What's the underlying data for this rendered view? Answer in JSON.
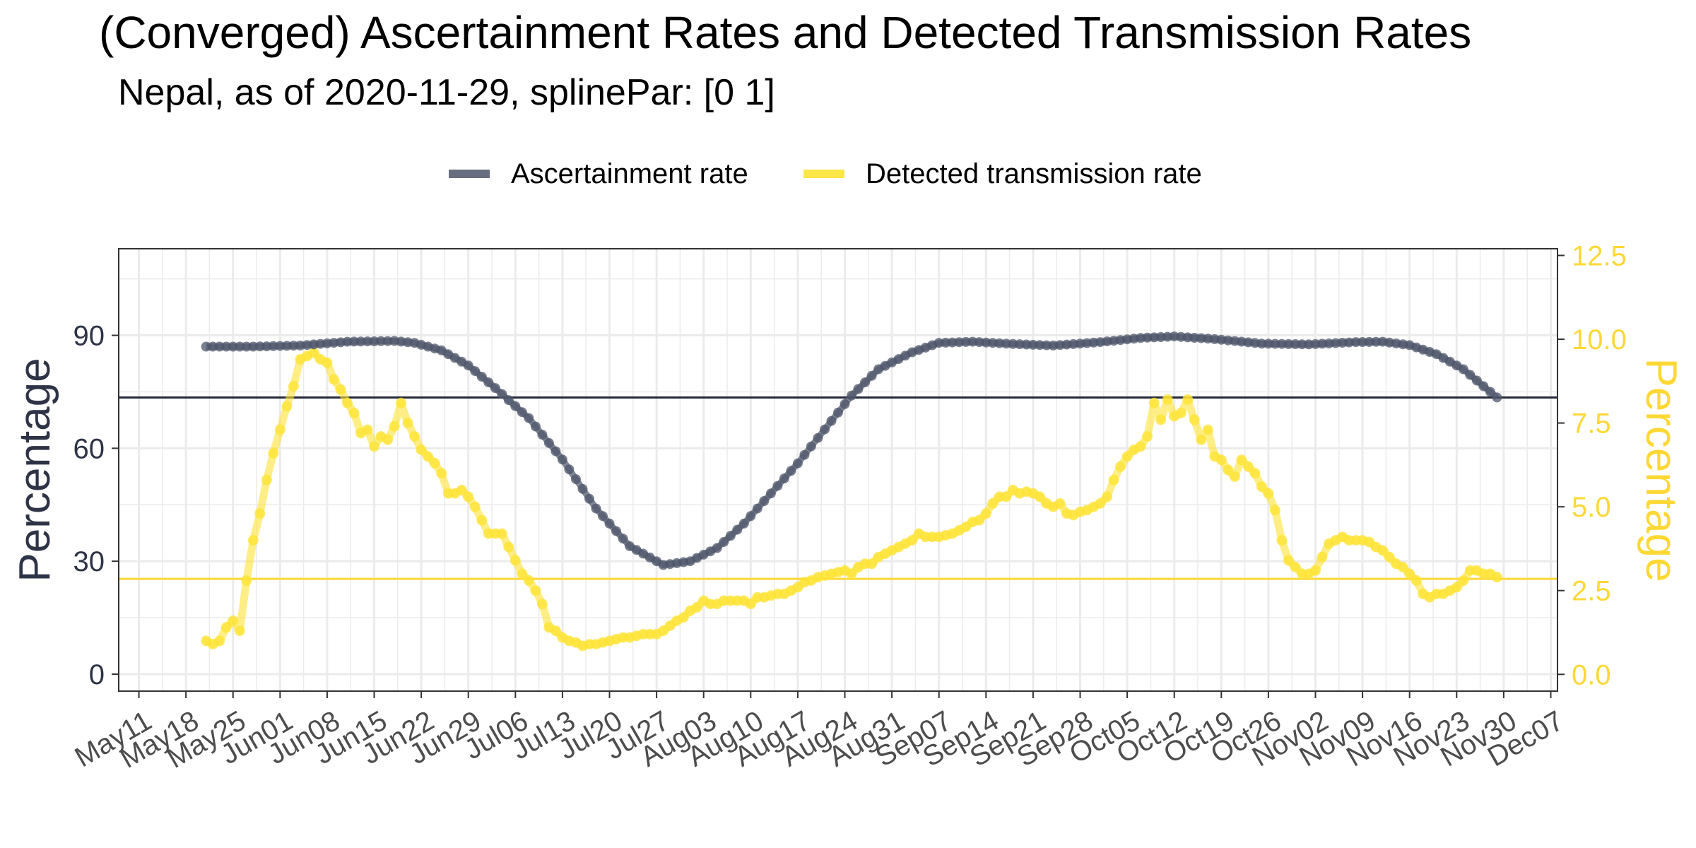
{
  "chart_data": {
    "type": "line",
    "title": "(Converged) Ascertainment Rates and Detected Transmission Rates",
    "subtitle": "Nepal, as of 2020-11-29, splinePar: [0 1]",
    "ylabel_left": "Percentage",
    "ylabel_right": "Percentage",
    "ylim_left": [
      -4.5,
      113
    ],
    "yticks_left": [
      "0",
      "30",
      "60",
      "90"
    ],
    "ylim_right": [
      -0.5,
      12.7
    ],
    "yticks_right": [
      "0.0",
      "2.5",
      "5.0",
      "7.5",
      "10.0",
      "12.5"
    ],
    "xlim": [
      "2020-05-08",
      "2020-12-08"
    ],
    "x_ticks": [
      {
        "date": "2020-05-11",
        "label": "May11"
      },
      {
        "date": "2020-05-18",
        "label": "May18"
      },
      {
        "date": "2020-05-25",
        "label": "May25"
      },
      {
        "date": "2020-06-01",
        "label": "Jun01"
      },
      {
        "date": "2020-06-08",
        "label": "Jun08"
      },
      {
        "date": "2020-06-15",
        "label": "Jun15"
      },
      {
        "date": "2020-06-22",
        "label": "Jun22"
      },
      {
        "date": "2020-06-29",
        "label": "Jun29"
      },
      {
        "date": "2020-07-06",
        "label": "Jul06"
      },
      {
        "date": "2020-07-13",
        "label": "Jul13"
      },
      {
        "date": "2020-07-20",
        "label": "Jul20"
      },
      {
        "date": "2020-07-27",
        "label": "Jul27"
      },
      {
        "date": "2020-08-03",
        "label": "Aug03"
      },
      {
        "date": "2020-08-10",
        "label": "Aug10"
      },
      {
        "date": "2020-08-17",
        "label": "Aug17"
      },
      {
        "date": "2020-08-24",
        "label": "Aug24"
      },
      {
        "date": "2020-08-31",
        "label": "Aug31"
      },
      {
        "date": "2020-09-07",
        "label": "Sep07"
      },
      {
        "date": "2020-09-14",
        "label": "Sep14"
      },
      {
        "date": "2020-09-21",
        "label": "Sep21"
      },
      {
        "date": "2020-09-28",
        "label": "Sep28"
      },
      {
        "date": "2020-10-05",
        "label": "Oct05"
      },
      {
        "date": "2020-10-12",
        "label": "Oct12"
      },
      {
        "date": "2020-10-19",
        "label": "Oct19"
      },
      {
        "date": "2020-10-26",
        "label": "Oct26"
      },
      {
        "date": "2020-11-02",
        "label": "Nov02"
      },
      {
        "date": "2020-11-09",
        "label": "Nov09"
      },
      {
        "date": "2020-11-16",
        "label": "Nov16"
      },
      {
        "date": "2020-11-23",
        "label": "Nov23"
      },
      {
        "date": "2020-11-30",
        "label": "Nov30"
      },
      {
        "date": "2020-12-07",
        "label": "Dec07"
      }
    ],
    "grid": true,
    "legend_position": "top",
    "colors": {
      "ascertainment": "#4d5569",
      "transmission": "#fde333",
      "ref_dark": "#252a3b",
      "ref_yellow": "#fdd835",
      "left_axis_text": "#2e3446",
      "right_axis_text": "#fdd835"
    },
    "series": [
      {
        "name": "Ascertainment rate",
        "axis": "left",
        "points": [
          [
            "2020-05-21",
            87
          ],
          [
            "2020-05-28",
            87
          ],
          [
            "2020-06-04",
            87.3
          ],
          [
            "2020-06-11",
            88.3
          ],
          [
            "2020-06-18",
            88.5
          ],
          [
            "2020-06-21",
            88
          ],
          [
            "2020-06-25",
            86
          ],
          [
            "2020-06-29",
            82
          ],
          [
            "2020-07-03",
            76
          ],
          [
            "2020-07-08",
            68
          ],
          [
            "2020-07-13",
            57
          ],
          [
            "2020-07-18",
            44
          ],
          [
            "2020-07-23",
            34
          ],
          [
            "2020-07-28",
            29
          ],
          [
            "2020-08-01",
            30
          ],
          [
            "2020-08-05",
            33.5
          ],
          [
            "2020-08-09",
            40
          ],
          [
            "2020-08-13",
            48
          ],
          [
            "2020-08-17",
            56
          ],
          [
            "2020-08-21",
            65
          ],
          [
            "2020-08-25",
            74
          ],
          [
            "2020-08-29",
            81
          ],
          [
            "2020-09-03",
            85.5
          ],
          [
            "2020-09-07",
            88
          ],
          [
            "2020-09-12",
            88.3
          ],
          [
            "2020-09-18",
            87.7
          ],
          [
            "2020-09-24",
            87.3
          ],
          [
            "2020-10-01",
            88.2
          ],
          [
            "2020-10-07",
            89.3
          ],
          [
            "2020-10-12",
            89.7
          ],
          [
            "2020-10-18",
            89
          ],
          [
            "2020-10-25",
            87.8
          ],
          [
            "2020-11-01",
            87.6
          ],
          [
            "2020-11-08",
            88.2
          ],
          [
            "2020-11-12",
            88.3
          ],
          [
            "2020-11-16",
            87.4
          ],
          [
            "2020-11-20",
            85
          ],
          [
            "2020-11-24",
            81
          ],
          [
            "2020-11-29",
            73.5
          ]
        ]
      },
      {
        "name": "Detected transmission rate",
        "axis": "right",
        "points": [
          [
            "2020-05-21",
            1
          ],
          [
            "2020-05-22",
            0.9
          ],
          [
            "2020-05-23",
            1
          ],
          [
            "2020-05-24",
            1.4
          ],
          [
            "2020-05-25",
            1.6
          ],
          [
            "2020-05-26",
            1.3
          ],
          [
            "2020-05-27",
            2.8
          ],
          [
            "2020-05-28",
            4
          ],
          [
            "2020-05-29",
            4.8
          ],
          [
            "2020-05-30",
            5.8
          ],
          [
            "2020-05-31",
            6.6
          ],
          [
            "2020-06-01",
            7.3
          ],
          [
            "2020-06-02",
            8
          ],
          [
            "2020-06-03",
            8.6
          ],
          [
            "2020-06-04",
            9.4
          ],
          [
            "2020-06-05",
            9.5
          ],
          [
            "2020-06-06",
            9.6
          ],
          [
            "2020-06-07",
            9.4
          ],
          [
            "2020-06-08",
            9.3
          ],
          [
            "2020-06-09",
            8.8
          ],
          [
            "2020-06-10",
            8.5
          ],
          [
            "2020-06-11",
            8.1
          ],
          [
            "2020-06-12",
            7.8
          ],
          [
            "2020-06-13",
            7.2
          ],
          [
            "2020-06-14",
            7.3
          ],
          [
            "2020-06-15",
            6.8
          ],
          [
            "2020-06-16",
            7.1
          ],
          [
            "2020-06-17",
            7
          ],
          [
            "2020-06-18",
            7.4
          ],
          [
            "2020-06-19",
            8.1
          ],
          [
            "2020-06-20",
            7.5
          ],
          [
            "2020-06-21",
            7.1
          ],
          [
            "2020-06-22",
            6.7
          ],
          [
            "2020-06-23",
            6.5
          ],
          [
            "2020-06-24",
            6.3
          ],
          [
            "2020-06-25",
            6
          ],
          [
            "2020-06-26",
            5.4
          ],
          [
            "2020-06-27",
            5.4
          ],
          [
            "2020-06-28",
            5.5
          ],
          [
            "2020-06-29",
            5.3
          ],
          [
            "2020-06-30",
            5
          ],
          [
            "2020-07-01",
            4.6
          ],
          [
            "2020-07-02",
            4.2
          ],
          [
            "2020-07-03",
            4.2
          ],
          [
            "2020-07-04",
            4.2
          ],
          [
            "2020-07-05",
            3.8
          ],
          [
            "2020-07-06",
            3.4
          ],
          [
            "2020-07-07",
            3
          ],
          [
            "2020-07-08",
            2.8
          ],
          [
            "2020-07-09",
            2.5
          ],
          [
            "2020-07-10",
            2.1
          ],
          [
            "2020-07-11",
            1.4
          ],
          [
            "2020-07-12",
            1.3
          ],
          [
            "2020-07-13",
            1.1
          ],
          [
            "2020-07-14",
            1
          ],
          [
            "2020-07-15",
            0.95
          ],
          [
            "2020-07-16",
            0.85
          ],
          [
            "2020-07-17",
            0.9
          ],
          [
            "2020-07-18",
            0.9
          ],
          [
            "2020-07-19",
            0.95
          ],
          [
            "2020-07-20",
            1
          ],
          [
            "2020-07-21",
            1.05
          ],
          [
            "2020-07-22",
            1.1
          ],
          [
            "2020-07-23",
            1.1
          ],
          [
            "2020-07-24",
            1.15
          ],
          [
            "2020-07-25",
            1.2
          ],
          [
            "2020-07-26",
            1.2
          ],
          [
            "2020-07-27",
            1.2
          ],
          [
            "2020-07-28",
            1.3
          ],
          [
            "2020-07-29",
            1.45
          ],
          [
            "2020-07-30",
            1.6
          ],
          [
            "2020-07-31",
            1.7
          ],
          [
            "2020-08-01",
            1.9
          ],
          [
            "2020-08-02",
            2
          ],
          [
            "2020-08-03",
            2.2
          ],
          [
            "2020-08-04",
            2.1
          ],
          [
            "2020-08-05",
            2.1
          ],
          [
            "2020-08-06",
            2.2
          ],
          [
            "2020-08-07",
            2.2
          ],
          [
            "2020-08-08",
            2.2
          ],
          [
            "2020-08-09",
            2.2
          ],
          [
            "2020-08-10",
            2.1
          ],
          [
            "2020-08-11",
            2.3
          ],
          [
            "2020-08-12",
            2.3
          ],
          [
            "2020-08-13",
            2.35
          ],
          [
            "2020-08-14",
            2.4
          ],
          [
            "2020-08-15",
            2.4
          ],
          [
            "2020-08-16",
            2.5
          ],
          [
            "2020-08-17",
            2.6
          ],
          [
            "2020-08-18",
            2.75
          ],
          [
            "2020-08-19",
            2.8
          ],
          [
            "2020-08-20",
            2.9
          ],
          [
            "2020-08-21",
            2.95
          ],
          [
            "2020-08-22",
            3
          ],
          [
            "2020-08-23",
            3.05
          ],
          [
            "2020-08-24",
            3.1
          ],
          [
            "2020-08-25",
            3
          ],
          [
            "2020-08-26",
            3.2
          ],
          [
            "2020-08-27",
            3.3
          ],
          [
            "2020-08-28",
            3.3
          ],
          [
            "2020-08-29",
            3.5
          ],
          [
            "2020-08-30",
            3.6
          ],
          [
            "2020-08-31",
            3.7
          ],
          [
            "2020-09-01",
            3.8
          ],
          [
            "2020-09-02",
            3.9
          ],
          [
            "2020-09-03",
            4
          ],
          [
            "2020-09-04",
            4.2
          ],
          [
            "2020-09-05",
            4.1
          ],
          [
            "2020-09-06",
            4.1
          ],
          [
            "2020-09-07",
            4.1
          ],
          [
            "2020-09-08",
            4.15
          ],
          [
            "2020-09-09",
            4.2
          ],
          [
            "2020-09-10",
            4.3
          ],
          [
            "2020-09-11",
            4.4
          ],
          [
            "2020-09-12",
            4.55
          ],
          [
            "2020-09-13",
            4.6
          ],
          [
            "2020-09-14",
            4.8
          ],
          [
            "2020-09-15",
            5.1
          ],
          [
            "2020-09-16",
            5.3
          ],
          [
            "2020-09-17",
            5.3
          ],
          [
            "2020-09-18",
            5.5
          ],
          [
            "2020-09-19",
            5.4
          ],
          [
            "2020-09-20",
            5.45
          ],
          [
            "2020-09-21",
            5.4
          ],
          [
            "2020-09-22",
            5.3
          ],
          [
            "2020-09-23",
            5.1
          ],
          [
            "2020-09-24",
            5
          ],
          [
            "2020-09-25",
            5.1
          ],
          [
            "2020-09-26",
            4.8
          ],
          [
            "2020-09-27",
            4.75
          ],
          [
            "2020-09-28",
            4.85
          ],
          [
            "2020-09-29",
            4.9
          ],
          [
            "2020-09-30",
            5
          ],
          [
            "2020-10-01",
            5.1
          ],
          [
            "2020-10-02",
            5.3
          ],
          [
            "2020-10-03",
            5.8
          ],
          [
            "2020-10-04",
            6.2
          ],
          [
            "2020-10-05",
            6.5
          ],
          [
            "2020-10-06",
            6.7
          ],
          [
            "2020-10-07",
            6.8
          ],
          [
            "2020-10-08",
            7.1
          ],
          [
            "2020-10-09",
            8.1
          ],
          [
            "2020-10-10",
            7.6
          ],
          [
            "2020-10-11",
            8.2
          ],
          [
            "2020-10-12",
            7.7
          ],
          [
            "2020-10-13",
            7.8
          ],
          [
            "2020-10-14",
            8.2
          ],
          [
            "2020-10-15",
            7.6
          ],
          [
            "2020-10-16",
            7
          ],
          [
            "2020-10-17",
            7.3
          ],
          [
            "2020-10-18",
            6.5
          ],
          [
            "2020-10-19",
            6.4
          ],
          [
            "2020-10-20",
            6.1
          ],
          [
            "2020-10-21",
            5.9
          ],
          [
            "2020-10-22",
            6.4
          ],
          [
            "2020-10-23",
            6.2
          ],
          [
            "2020-10-24",
            6
          ],
          [
            "2020-10-25",
            5.6
          ],
          [
            "2020-10-26",
            5.4
          ],
          [
            "2020-10-27",
            4.9
          ],
          [
            "2020-10-28",
            4
          ],
          [
            "2020-10-29",
            3.4
          ],
          [
            "2020-10-30",
            3.2
          ],
          [
            "2020-10-31",
            3
          ],
          [
            "2020-11-01",
            3
          ],
          [
            "2020-11-02",
            3.1
          ],
          [
            "2020-11-03",
            3.5
          ],
          [
            "2020-11-04",
            3.9
          ],
          [
            "2020-11-05",
            4
          ],
          [
            "2020-11-06",
            4.1
          ],
          [
            "2020-11-07",
            4
          ],
          [
            "2020-11-08",
            4
          ],
          [
            "2020-11-09",
            4
          ],
          [
            "2020-11-10",
            3.95
          ],
          [
            "2020-11-11",
            3.8
          ],
          [
            "2020-11-12",
            3.7
          ],
          [
            "2020-11-13",
            3.5
          ],
          [
            "2020-11-14",
            3.3
          ],
          [
            "2020-11-15",
            3.2
          ],
          [
            "2020-11-16",
            3
          ],
          [
            "2020-11-17",
            2.8
          ],
          [
            "2020-11-18",
            2.4
          ],
          [
            "2020-11-19",
            2.3
          ],
          [
            "2020-11-20",
            2.4
          ],
          [
            "2020-11-21",
            2.4
          ],
          [
            "2020-11-22",
            2.5
          ],
          [
            "2020-11-23",
            2.6
          ],
          [
            "2020-11-24",
            2.8
          ],
          [
            "2020-11-25",
            3.1
          ],
          [
            "2020-11-26",
            3.1
          ],
          [
            "2020-11-27",
            3
          ],
          [
            "2020-11-28",
            3
          ],
          [
            "2020-11-29",
            2.9
          ]
        ]
      }
    ],
    "reference_lines": [
      {
        "axis": "left",
        "value": 73.5,
        "color": "#252a3b"
      },
      {
        "axis": "right",
        "value": 2.85,
        "color": "#fdd835"
      }
    ]
  }
}
